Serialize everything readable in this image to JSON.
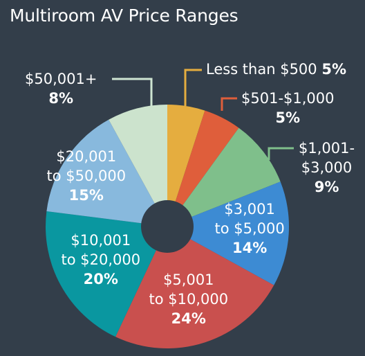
{
  "chart_data": {
    "type": "pie",
    "title": "Multiroom AV Price Ranges",
    "categories": [
      "Less than $500",
      "$501-$1,000",
      "$1,001-$3,000",
      "$3,001 to $5,000",
      "$5,001 to $10,000",
      "$10,001 to $20,000",
      "$20,001 to $50,000",
      "$50,001+"
    ],
    "values": [
      5,
      5,
      9,
      14,
      24,
      20,
      15,
      8
    ],
    "value_labels": [
      "5%",
      "5%",
      "9%",
      "14%",
      "24%",
      "20%",
      "15%",
      "8%"
    ],
    "label_lines": [
      [
        "Less than $500"
      ],
      [
        "$501-$1,000"
      ],
      [
        "$1,001-",
        "$3,000"
      ],
      [
        "$3,001",
        "to $5,000"
      ],
      [
        "$5,001",
        "to $10,000"
      ],
      [
        "$10,001",
        "to $20,000"
      ],
      [
        "$20,001",
        "to $50,000"
      ],
      [
        "$50,001+"
      ]
    ],
    "colors": [
      "#e5ad3f",
      "#df5e3b",
      "#7fbf8b",
      "#3d8bd3",
      "#c9504e",
      "#0a97a0",
      "#88b9dd",
      "#cce3cd"
    ],
    "background_color": "#333e4a",
    "leader_color": "#cfe5d2",
    "donut_hole": true,
    "legend": "none"
  }
}
